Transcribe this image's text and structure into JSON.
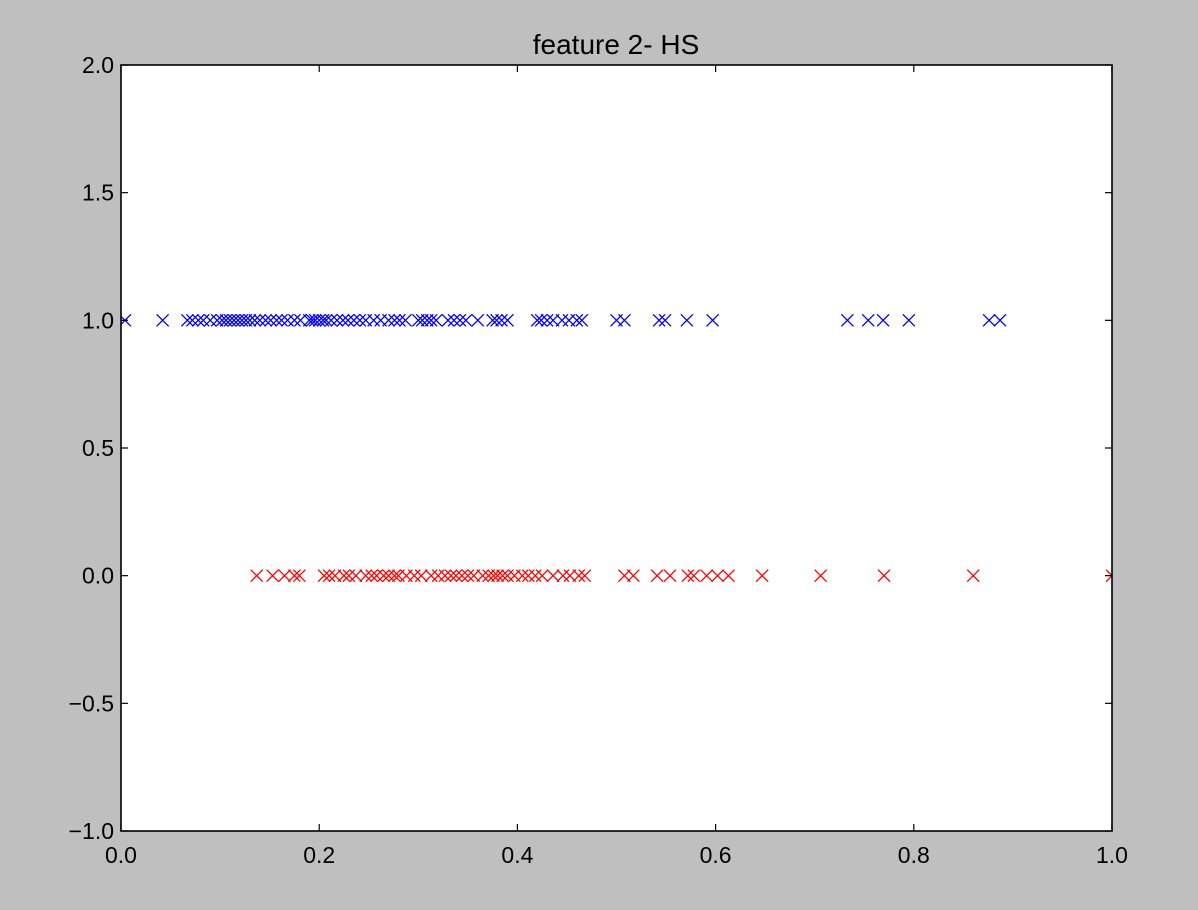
{
  "colors": {
    "figure_background": "#bfbfbf",
    "axes_background": "#ffffff",
    "series_label_1": "#0000ff",
    "series_label_0": "#ff0000"
  },
  "chart_data": {
    "type": "scatter",
    "title": "feature 2- HS",
    "xlabel": "",
    "ylabel": "",
    "xlim": [
      0.0,
      1.0
    ],
    "ylim": [
      -1.0,
      2.0
    ],
    "grid": false,
    "marker": "x",
    "x_ticks": [
      {
        "value": 0.0,
        "label": "0.0"
      },
      {
        "value": 0.2,
        "label": "0.2"
      },
      {
        "value": 0.4,
        "label": "0.4"
      },
      {
        "value": 0.6,
        "label": "0.6"
      },
      {
        "value": 0.8,
        "label": "0.8"
      },
      {
        "value": 1.0,
        "label": "1.0"
      }
    ],
    "y_ticks": [
      {
        "value": -1.0,
        "label": "−1.0"
      },
      {
        "value": -0.5,
        "label": "−0.5"
      },
      {
        "value": 0.0,
        "label": "0.0"
      },
      {
        "value": 0.5,
        "label": "0.5"
      },
      {
        "value": 1.0,
        "label": "1.0"
      },
      {
        "value": 1.5,
        "label": "1.5"
      },
      {
        "value": 2.0,
        "label": "2.0"
      }
    ],
    "series": [
      {
        "color": "#0000ff",
        "y": 1.0,
        "x": [
          0.004,
          0.042,
          0.067,
          0.072,
          0.078,
          0.083,
          0.09,
          0.097,
          0.102,
          0.106,
          0.11,
          0.114,
          0.118,
          0.122,
          0.126,
          0.13,
          0.135,
          0.14,
          0.146,
          0.151,
          0.157,
          0.162,
          0.168,
          0.175,
          0.181,
          0.19,
          0.193,
          0.196,
          0.2,
          0.204,
          0.207,
          0.212,
          0.218,
          0.224,
          0.229,
          0.235,
          0.241,
          0.247,
          0.255,
          0.262,
          0.27,
          0.276,
          0.281,
          0.287,
          0.3,
          0.304,
          0.309,
          0.313,
          0.318,
          0.33,
          0.336,
          0.342,
          0.348,
          0.36,
          0.375,
          0.379,
          0.384,
          0.39,
          0.42,
          0.424,
          0.43,
          0.436,
          0.445,
          0.452,
          0.46,
          0.465,
          0.5,
          0.508,
          0.543,
          0.549,
          0.571,
          0.597,
          0.733,
          0.754,
          0.769,
          0.795,
          0.876,
          0.887
        ]
      },
      {
        "color": "#ff0000",
        "y": 0.0,
        "x": [
          0.137,
          0.153,
          0.165,
          0.175,
          0.18,
          0.205,
          0.21,
          0.216,
          0.225,
          0.23,
          0.237,
          0.247,
          0.253,
          0.258,
          0.265,
          0.27,
          0.276,
          0.28,
          0.288,
          0.296,
          0.303,
          0.313,
          0.32,
          0.327,
          0.333,
          0.338,
          0.344,
          0.35,
          0.356,
          0.365,
          0.371,
          0.376,
          0.38,
          0.385,
          0.39,
          0.397,
          0.405,
          0.411,
          0.418,
          0.425,
          0.436,
          0.446,
          0.453,
          0.462,
          0.468,
          0.508,
          0.517,
          0.541,
          0.554,
          0.572,
          0.578,
          0.591,
          0.602,
          0.613,
          0.647,
          0.706,
          0.77,
          0.86,
          1.0
        ]
      }
    ]
  }
}
